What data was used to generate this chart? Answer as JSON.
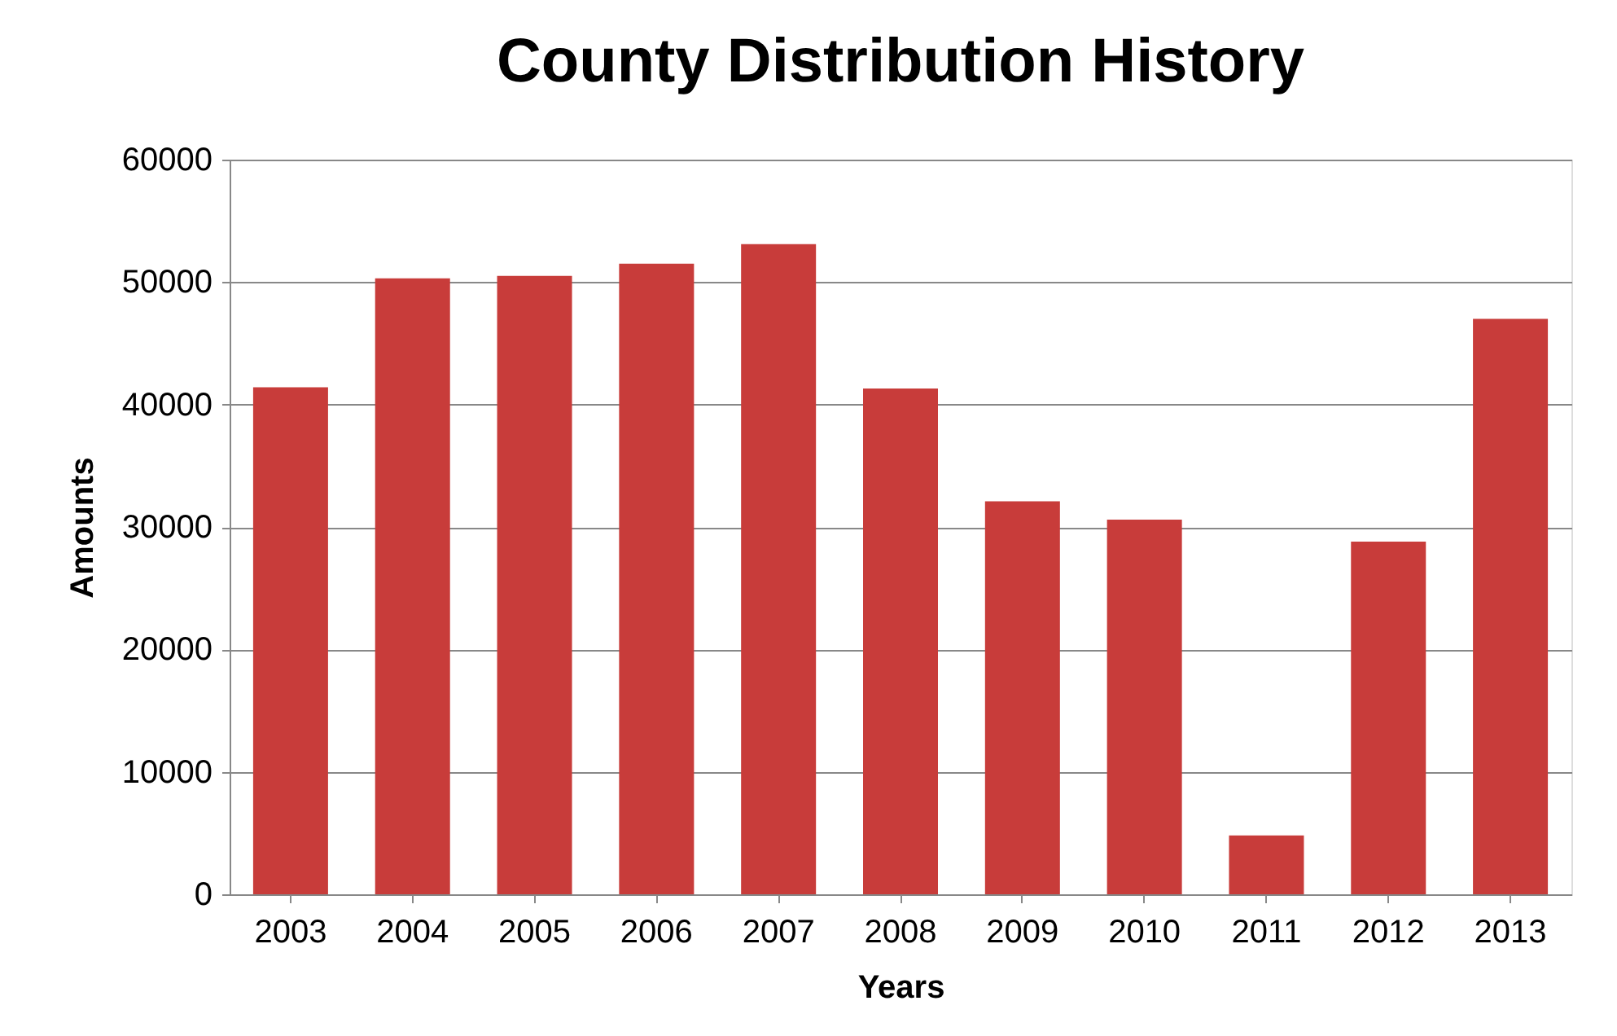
{
  "chart_data": {
    "type": "bar",
    "title": "County Distribution History",
    "xlabel": "Years",
    "ylabel": "Amounts",
    "categories": [
      "2003",
      "2004",
      "2005",
      "2006",
      "2007",
      "2008",
      "2009",
      "2010",
      "2011",
      "2012",
      "2013"
    ],
    "values": [
      41400,
      50300,
      50500,
      51500,
      53100,
      41300,
      32100,
      30600,
      4800,
      28800,
      47000
    ],
    "color": "#c83c3a",
    "ylim": [
      0,
      60000
    ],
    "yticks": [
      0,
      10000,
      20000,
      30000,
      40000,
      50000,
      60000
    ],
    "grid": "y"
  }
}
